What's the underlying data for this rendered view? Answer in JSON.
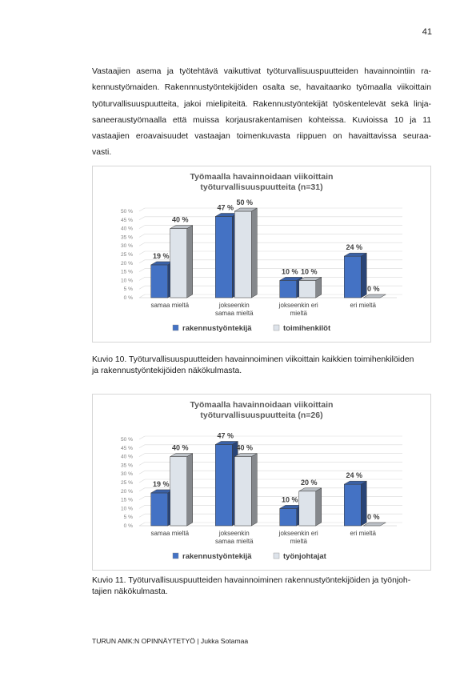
{
  "page_number": "41",
  "paragraph_lines": [
    "Vastaajien asema ja työtehtävä vaikuttivat työturvallisuuspuutteiden havainnointiin ra-",
    "kennustyömaiden. Rakennnustyöntekijöiden osalta se, havaitaanko työmaalla viikoittain",
    "työturvallisuuspuutteita, jakoi mielipiteitä. Rakennustyöntekijät työskentelevät sekä linja-",
    "saneeraustyömaalla että muissa korjausrakentamisen kohteissa. Kuvioissa 10 ja 11",
    "vastaajien eroavaisuudet vastaajan toimenkuvasta riippuen on havaittavissa seuraa-",
    "vasti."
  ],
  "chart_data": [
    {
      "type": "bar",
      "title_lines": [
        "Työmaalla havainnoidaan viikoittain",
        "työturvallisuuspuutteita (n=31)"
      ],
      "categories": [
        [
          "samaa mieltä"
        ],
        [
          "jokseenkin",
          "samaa mieltä"
        ],
        [
          "jokseenkin eri",
          "mieltä"
        ],
        [
          "eri mieltä"
        ]
      ],
      "yticks": [
        "0 %",
        "5 %",
        "10 %",
        "15 %",
        "20 %",
        "25 %",
        "30 %",
        "35 %",
        "40 %",
        "45 %",
        "50 %"
      ],
      "ylim": [
        0,
        50
      ],
      "legend_position": "bottom",
      "series": [
        {
          "name": "rakennustyöntekijä",
          "values": [
            19,
            47,
            10,
            24
          ],
          "labels": [
            "19 %",
            "47 %",
            "10 %",
            "24 %"
          ],
          "color": "#4472c4"
        },
        {
          "name": "toimihenkilöt",
          "values": [
            40,
            50,
            10,
            0
          ],
          "labels": [
            "40 %",
            "50 %",
            "10 %",
            "0 %"
          ],
          "color": "#dde3ea"
        }
      ]
    },
    {
      "type": "bar",
      "title_lines": [
        "Työmaalla havainnoidaan viikoittain",
        "työturvallisuuspuutteita (n=26)"
      ],
      "categories": [
        [
          "samaa mieltä"
        ],
        [
          "jokseenkin",
          "samaa mieltä"
        ],
        [
          "jokseenkin eri",
          "mieltä"
        ],
        [
          "eri mieltä"
        ]
      ],
      "yticks": [
        "0 %",
        "5 %",
        "10 %",
        "15 %",
        "20 %",
        "25 %",
        "30 %",
        "35 %",
        "40 %",
        "45 %",
        "50 %"
      ],
      "ylim": [
        0,
        50
      ],
      "legend_position": "bottom",
      "series": [
        {
          "name": "rakennustyöntekijä",
          "values": [
            19,
            47,
            10,
            24
          ],
          "labels": [
            "19 %",
            "47 %",
            "10 %",
            "24 %"
          ],
          "color": "#4472c4"
        },
        {
          "name": "työnjohtajat",
          "values": [
            40,
            40,
            20,
            0
          ],
          "labels": [
            "40 %",
            "40 %",
            "20 %",
            "0 %"
          ],
          "color": "#dde3ea"
        }
      ]
    }
  ],
  "caption1_lines": [
    "Kuvio 10. Työturvallisuuspuutteiden havainnoiminen viikoittain kaikkien toimihenkilöiden",
    "ja rakennustyöntekijöiden näkökulmasta."
  ],
  "caption2_lines": [
    "Kuvio 11. Työturvallisuuspuutteiden havainnoiminen rakennustyöntekijöiden ja työnjoh-",
    "tajien näkökulmasta."
  ],
  "footer": "TURUN AMK:N OPINNÄYTETYÖ | Jukka Sotamaa"
}
